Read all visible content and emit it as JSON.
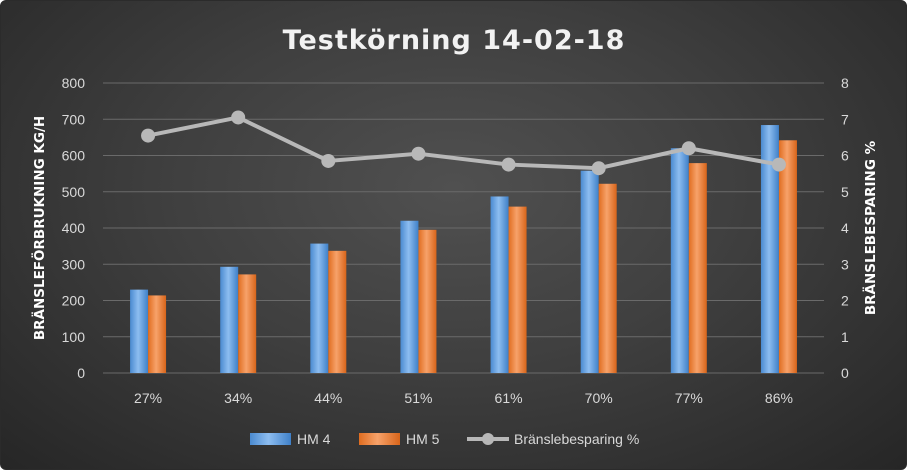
{
  "chart_data": {
    "type": "bar",
    "title": "Testkörning 14-02-18",
    "ylabel": "BRÄNSLEFÖRBRUKNING KG/H",
    "y2label": "BRÄNSLEBESPARING %",
    "categories": [
      "27%",
      "34%",
      "44%",
      "51%",
      "61%",
      "70%",
      "77%",
      "86%"
    ],
    "ylim": [
      0,
      800
    ],
    "yticks": [
      0,
      100,
      200,
      300,
      400,
      500,
      600,
      700,
      800
    ],
    "y2lim": [
      0,
      8
    ],
    "y2ticks": [
      0,
      1,
      2,
      3,
      4,
      5,
      6,
      7,
      8
    ],
    "grid": true,
    "legend_position": "bottom",
    "series": [
      {
        "name": "HM 4",
        "type": "bar",
        "axis": "left",
        "color": "#5b9bd5",
        "values": [
          230,
          293,
          357,
          420,
          487,
          558,
          620,
          684
        ]
      },
      {
        "name": "HM 5",
        "type": "bar",
        "axis": "left",
        "color": "#ed7d31",
        "values": [
          214,
          272,
          337,
          395,
          459,
          522,
          579,
          642
        ]
      },
      {
        "name": "Bränslebesparing %",
        "type": "line",
        "axis": "right",
        "color": "#a5a5a5",
        "values": [
          6.55,
          7.05,
          5.85,
          6.05,
          5.75,
          5.65,
          6.2,
          5.75
        ]
      }
    ]
  }
}
